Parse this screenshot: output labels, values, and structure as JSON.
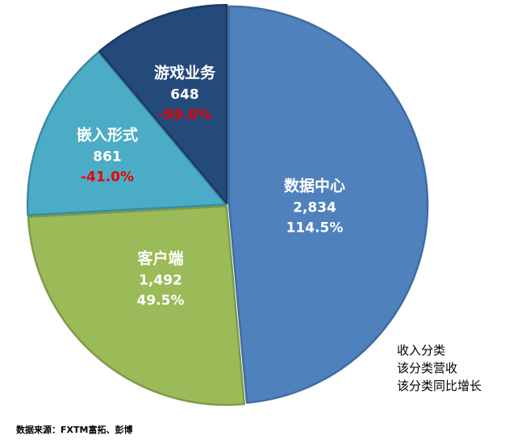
{
  "chart_data": {
    "type": "pie",
    "title": "",
    "total": 5835,
    "start_angle_deg": 0,
    "direction": "clockwise",
    "legend_position": "none",
    "positive_text_color": "#FFFFFF",
    "negative_text_color": "#EE0000",
    "slices": [
      {
        "label": "数据中心",
        "value": 2834,
        "value_label": "2,834",
        "growth": "114.5%",
        "negative": false,
        "color": "#4F81BD",
        "border": "#3F6CA5"
      },
      {
        "label": "客户端",
        "value": 1492,
        "value_label": "1,492",
        "growth": "49.5%",
        "negative": false,
        "color": "#9BBB59",
        "border": "#7E9B44"
      },
      {
        "label": "嵌入形式",
        "value": 861,
        "value_label": "861",
        "growth": "-41.0%",
        "negative": true,
        "color": "#4BACC6",
        "border": "#3A8BA3"
      },
      {
        "label": "游戏业务",
        "value": 648,
        "value_label": "648",
        "growth": "-59.0%",
        "negative": true,
        "color": "#24497B",
        "border": "#1B3A62"
      }
    ]
  },
  "legend": {
    "lines": [
      "收入分类",
      "该分类营收",
      "该分类同比增长"
    ]
  },
  "source": {
    "text": "数据来源：FXTM富拓、彭博"
  }
}
